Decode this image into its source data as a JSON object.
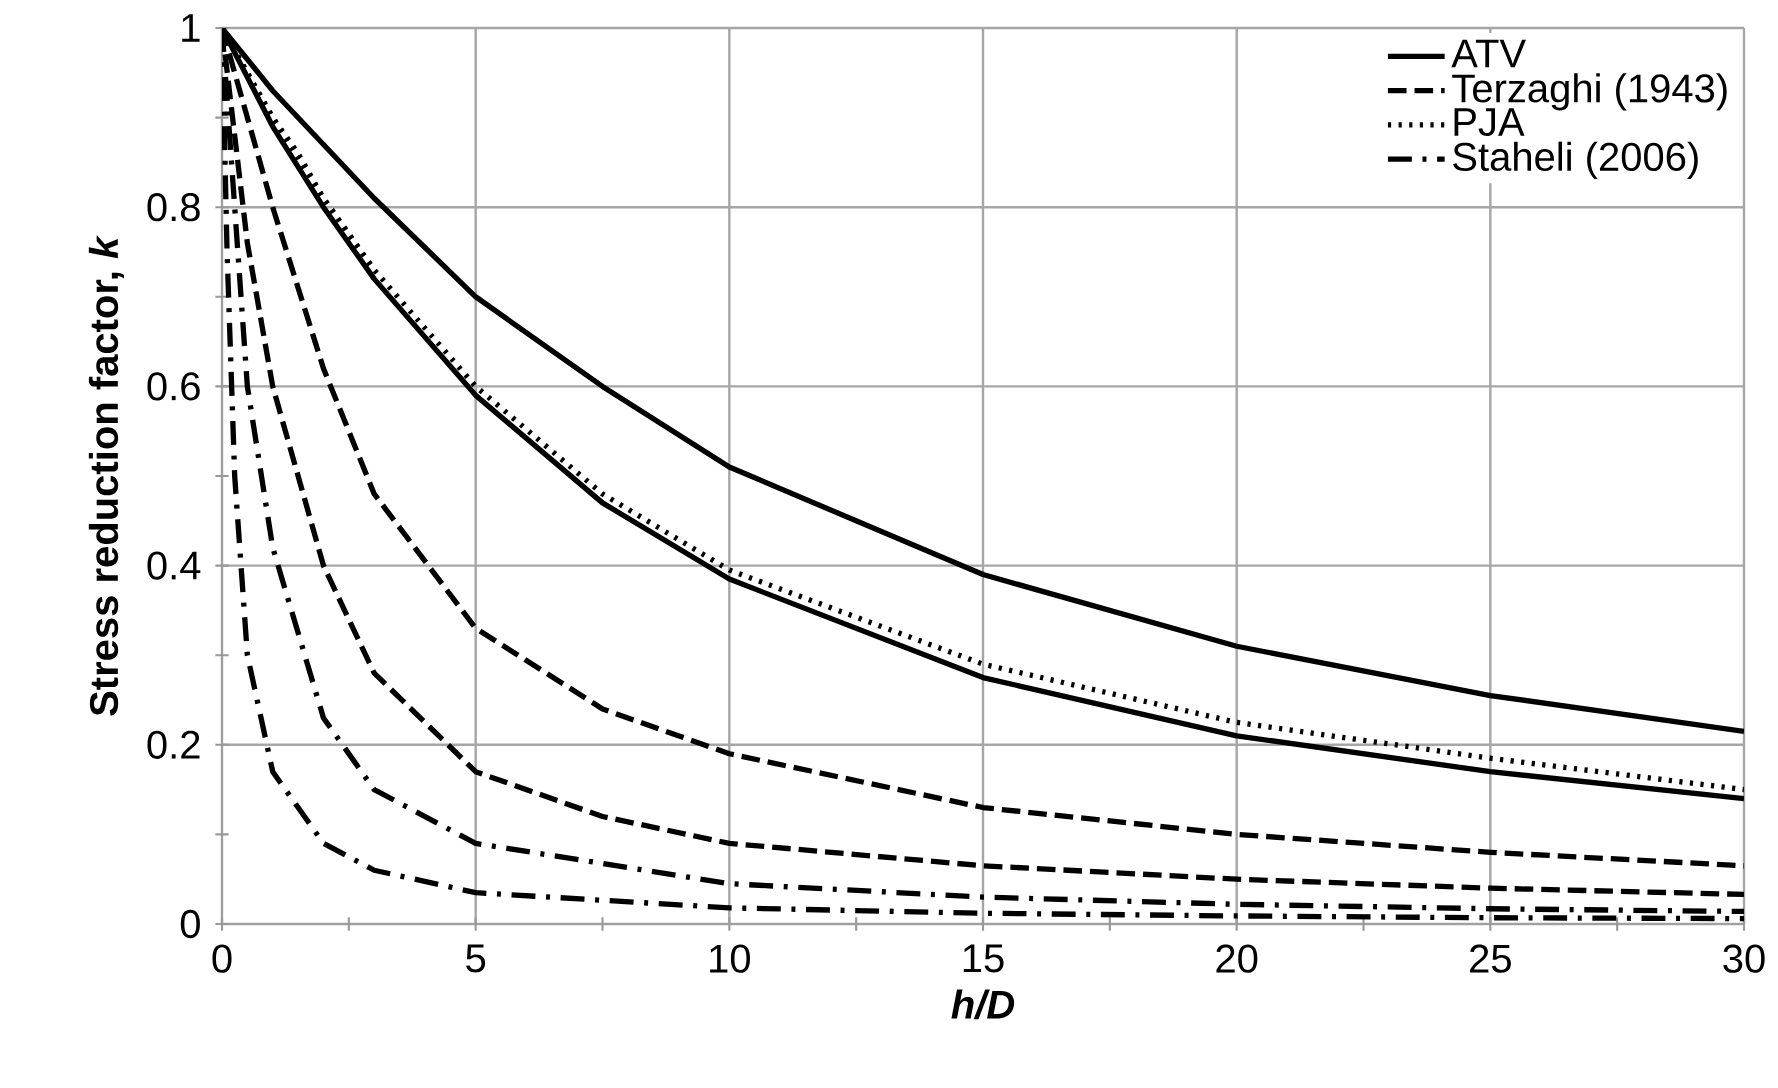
{
  "chart_data": {
    "type": "line",
    "xlabel": "h/D",
    "ylabel": "Stress reduction factor, *k*",
    "xlim": [
      0,
      30
    ],
    "ylim": [
      0,
      1
    ],
    "xticks": [
      0,
      5,
      10,
      15,
      20,
      25,
      30
    ],
    "yticks": [
      0,
      0.2,
      0.4,
      0.6,
      0.8,
      1
    ],
    "grid": true,
    "legend": "top right",
    "marker": "none",
    "series": [
      {
        "name": "ATV",
        "color": "#000000",
        "line_style": "solid",
        "x": [
          0,
          1,
          2,
          3,
          5,
          7.5,
          10,
          15,
          20,
          25,
          30
        ],
        "values": [
          1,
          0.93,
          0.87,
          0.81,
          0.7,
          0.6,
          0.51,
          0.39,
          0.31,
          0.255,
          0.215
        ]
      },
      {
        "color": "#000000",
        "line_style": "solid",
        "x": [
          0,
          1,
          2,
          3,
          5,
          7.5,
          10,
          15,
          20,
          25,
          30
        ],
        "values": [
          1,
          0.89,
          0.8,
          0.72,
          0.59,
          0.47,
          0.385,
          0.275,
          0.21,
          0.17,
          0.14
        ]
      },
      {
        "name": "Terzaghi (1943)",
        "color": "#000000",
        "line_style": "dashed",
        "x": [
          0,
          0.5,
          1,
          2,
          3,
          5,
          7.5,
          10,
          15,
          20,
          25,
          30
        ],
        "values": [
          1,
          0.9,
          0.8,
          0.62,
          0.48,
          0.33,
          0.24,
          0.19,
          0.13,
          0.1,
          0.08,
          0.065
        ]
      },
      {
        "color": "#000000",
        "line_style": "dashed",
        "x": [
          0,
          0.5,
          1,
          2,
          3,
          5,
          7.5,
          10,
          15,
          20,
          25,
          30
        ],
        "values": [
          1,
          0.76,
          0.6,
          0.4,
          0.28,
          0.17,
          0.12,
          0.09,
          0.065,
          0.05,
          0.04,
          0.033
        ]
      },
      {
        "name": "PJA",
        "color": "#000000",
        "line_style": "dotted",
        "x": [
          0,
          1,
          2,
          3,
          5,
          7.5,
          10,
          15,
          20,
          25,
          30
        ],
        "values": [
          1,
          0.9,
          0.81,
          0.73,
          0.6,
          0.48,
          0.395,
          0.29,
          0.225,
          0.185,
          0.15
        ]
      },
      {
        "color": "#000000",
        "line_style": "dotted",
        "x": [
          0,
          0.5,
          1,
          1.5,
          2,
          2.5,
          3
        ],
        "values": [
          1,
          0.95,
          0.9,
          0.86,
          0.81,
          0.77,
          0.73
        ]
      },
      {
        "name": "Staheli (2006)",
        "color": "#000000",
        "line_style": "dashdot",
        "x": [
          0,
          0.25,
          0.5,
          1,
          2,
          3,
          5,
          10,
          15,
          20,
          25,
          30
        ],
        "values": [
          1,
          0.8,
          0.6,
          0.42,
          0.23,
          0.15,
          0.09,
          0.045,
          0.03,
          0.022,
          0.017,
          0.014
        ]
      },
      {
        "color": "#000000",
        "line_style": "dashdot",
        "x": [
          0,
          0.1,
          0.25,
          0.5,
          1,
          2,
          3,
          5,
          10,
          15,
          20,
          25,
          30
        ],
        "values": [
          1,
          0.75,
          0.5,
          0.3,
          0.17,
          0.09,
          0.06,
          0.035,
          0.018,
          0.012,
          0.009,
          0.007,
          0.006
        ]
      }
    ]
  }
}
